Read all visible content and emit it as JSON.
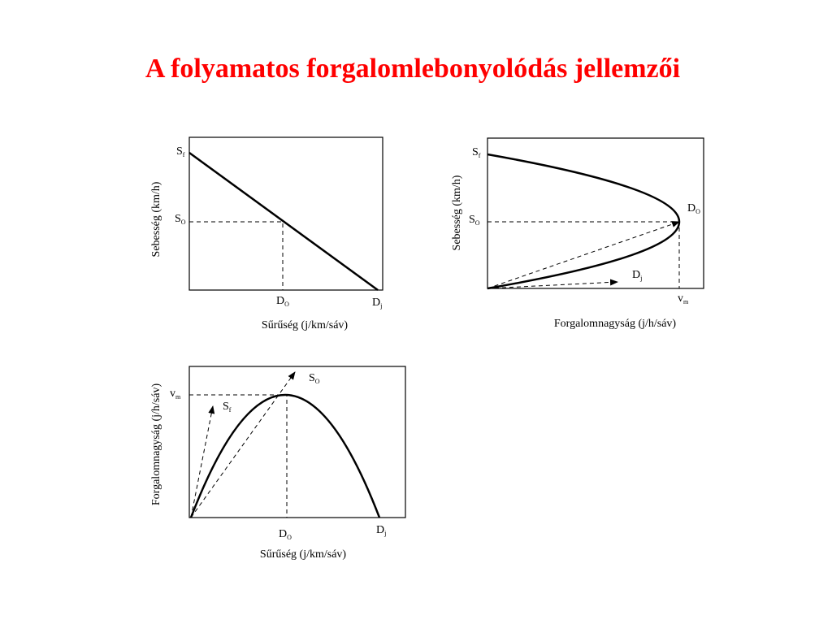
{
  "title": "A folyamatos forgalomlebonyolódás jellemzői",
  "panels": [
    {
      "y_label": "Sebesség (km/h)",
      "x_label": "Sűrűség (j/km/sáv)",
      "labels": [
        {
          "main": "S",
          "sub": "f"
        },
        {
          "main": "S",
          "sub": "O"
        },
        {
          "main": "D",
          "sub": "O"
        },
        {
          "main": "D",
          "sub": "j"
        }
      ]
    },
    {
      "y_label": "Sebesség (km/h)",
      "x_label": "Forgalomnagyság (j/h/sáv)",
      "labels": [
        {
          "main": "S",
          "sub": "f"
        },
        {
          "main": "S",
          "sub": "O"
        },
        {
          "main": "D",
          "sub": "O"
        },
        {
          "main": "D",
          "sub": "j"
        },
        {
          "main": "v",
          "sub": "m"
        }
      ]
    },
    {
      "y_label": "Forgalomnagyság (j/h/sáv)",
      "x_label": "Sűrűség (j/km/sáv)",
      "labels": [
        {
          "main": "v",
          "sub": "m"
        },
        {
          "main": "S",
          "sub": "f"
        },
        {
          "main": "S",
          "sub": "O"
        },
        {
          "main": "D",
          "sub": "O"
        },
        {
          "main": "D",
          "sub": "j"
        }
      ]
    }
  ]
}
